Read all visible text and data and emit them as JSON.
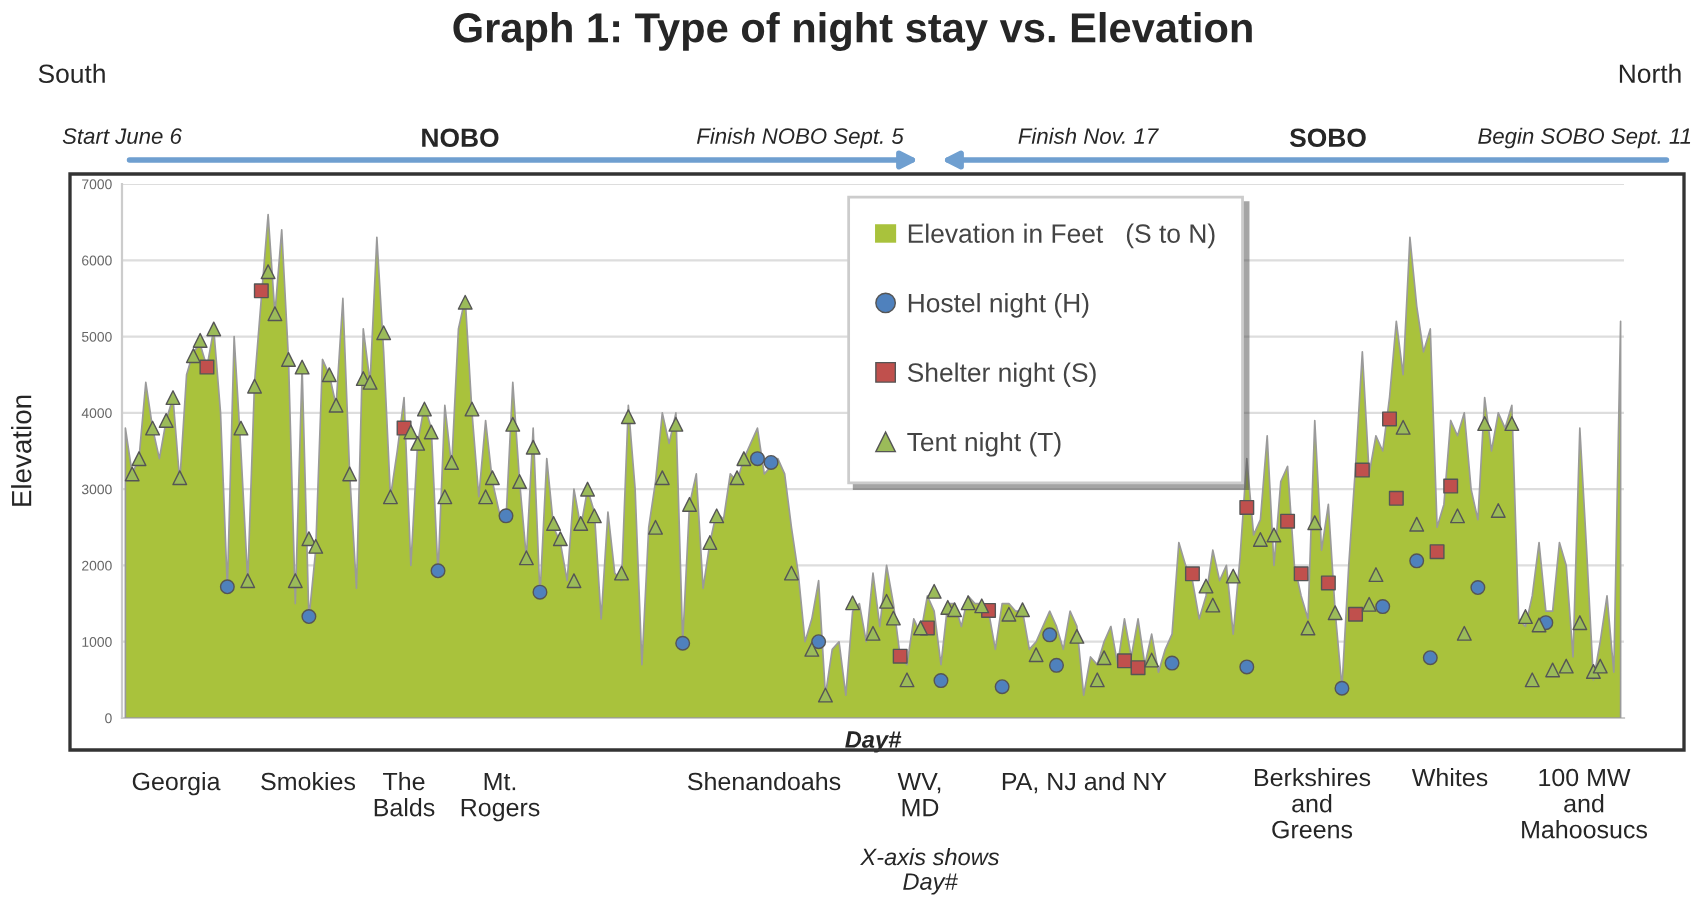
{
  "chart_data": {
    "type": "area",
    "title": "Graph 1: Type of night stay vs. Elevation",
    "xlabel": "Day#",
    "ylabel": "Elevation",
    "ylim": [
      0,
      7000
    ],
    "yticks": [
      0,
      1000,
      2000,
      3000,
      4000,
      5000,
      6000,
      7000
    ],
    "grid": "y",
    "legend": "top",
    "categories": [
      null,
      null,
      null,
      null,
      null,
      null,
      null,
      null,
      null,
      null,
      null,
      null,
      null,
      null,
      null,
      null,
      null,
      null,
      null,
      null,
      null,
      null,
      null,
      null,
      null,
      null,
      null,
      null,
      null,
      null,
      null,
      null,
      null,
      null,
      null,
      null,
      null,
      null,
      null,
      null,
      null,
      null,
      null,
      null,
      null,
      null,
      null,
      null,
      null,
      null,
      null,
      null,
      null,
      null,
      null,
      null,
      null,
      null,
      null,
      null,
      null,
      null,
      null,
      null,
      null,
      null,
      null,
      null,
      null,
      null,
      null,
      null,
      null,
      null,
      null,
      null,
      null,
      null,
      null,
      null,
      null,
      null,
      null,
      null,
      null,
      null,
      null,
      null,
      null,
      null,
      null,
      null,
      null,
      null,
      null,
      null,
      null,
      null,
      null,
      null,
      null,
      null,
      null,
      null,
      null,
      null,
      null,
      null,
      null,
      null,
      null,
      null,
      null,
      null,
      null,
      null,
      null,
      null,
      null,
      null,
      null,
      null,
      null,
      null,
      null,
      null,
      null,
      null,
      null,
      null,
      null,
      null,
      null,
      null,
      null,
      null,
      null,
      null,
      null,
      null,
      null,
      null,
      null,
      null,
      null,
      null,
      null,
      null,
      null,
      null,
      null,
      null,
      null,
      null,
      null,
      null,
      null,
      null,
      null,
      null,
      null,
      null,
      null,
      null,
      null,
      null,
      null,
      null,
      null,
      null,
      null,
      null,
      null,
      null,
      null,
      null,
      null,
      null,
      null,
      null,
      null,
      null,
      null,
      null,
      null,
      null,
      null,
      null,
      null,
      null,
      null,
      null,
      null,
      null,
      null,
      null,
      null,
      null,
      null,
      null,
      null,
      null,
      null,
      null,
      null,
      null,
      null,
      null,
      null,
      null,
      null,
      null,
      null,
      null,
      null,
      null,
      null,
      null,
      null,
      null,
      null
    ],
    "series": [
      {
        "name": "Elevation in Feet   (S to N)",
        "color": "#a9c23c",
        "values": [
          3800,
          3200,
          3400,
          4400,
          3800,
          3400,
          3900,
          4200,
          3100,
          4500,
          4800,
          4900,
          4600,
          5100,
          4000,
          1700,
          5000,
          3500,
          1800,
          4400,
          5500,
          6600,
          5300,
          6400,
          4700,
          1500,
          4600,
          1300,
          2200,
          4700,
          4500,
          4100,
          5500,
          3200,
          1700,
          5100,
          4400,
          6300,
          4800,
          2900,
          3500,
          4200,
          2000,
          3600,
          4100,
          3800,
          1900,
          4100,
          3300,
          5100,
          5500,
          4000,
          2900,
          3900,
          3100,
          2700,
          2600,
          4400,
          3100,
          2100,
          3800,
          1600,
          3400,
          2500,
          2300,
          1800,
          3000,
          2500,
          3000,
          2700,
          1300,
          2700,
          1900,
          1800,
          4100,
          3000,
          700,
          2500,
          3100,
          4000,
          3600,
          4000,
          1000,
          2800,
          3200,
          1700,
          2300,
          2700,
          2600,
          3200,
          3100,
          3400,
          3600,
          3800,
          3200,
          3300,
          3400,
          3200,
          2500,
          1900,
          1000,
          1300,
          1800,
          300,
          900,
          1000,
          300,
          1400,
          1500,
          1000,
          1900,
          1200,
          2000,
          1500,
          800,
          700,
          1300,
          1100,
          1600,
          1400,
          700,
          1500,
          1500,
          1200,
          1600,
          1500,
          1500,
          1400,
          900,
          1500,
          1500,
          1400,
          1400,
          900,
          1000,
          1200,
          1400,
          1200,
          900,
          1400,
          1200,
          300,
          800,
          700,
          1000,
          1200,
          700,
          1300,
          800,
          1300,
          700,
          1100,
          600,
          900,
          1100,
          2300,
          2000,
          1800,
          1300,
          1600,
          2200,
          1800,
          2000,
          1100,
          2100,
          3400,
          2400,
          2600,
          3700,
          2000,
          3100,
          3300,
          2000,
          1600,
          1300,
          3900,
          2200,
          2800,
          1400,
          400,
          2000,
          3300,
          4800,
          3200,
          3700,
          3500,
          4200,
          5200,
          4500,
          6300,
          5400,
          4800,
          5100,
          2500,
          2800,
          3900,
          3700,
          4000,
          3000,
          2600,
          4200,
          3500,
          4000,
          3800,
          4100,
          1300,
          1200,
          1600,
          2300,
          1400,
          1400,
          2300,
          2000,
          800,
          3800,
          2200,
          500,
          1000,
          1600,
          600,
          5200
        ]
      },
      {
        "name": "Hostel night (H)",
        "type": "scatter",
        "marker": "circle",
        "color": "#4f81bd",
        "values": [
          null,
          null,
          null,
          null,
          null,
          null,
          null,
          null,
          null,
          null,
          null,
          null,
          null,
          null,
          null,
          1720,
          null,
          null,
          null,
          null,
          null,
          null,
          null,
          null,
          null,
          null,
          null,
          1330,
          null,
          null,
          null,
          null,
          null,
          null,
          null,
          null,
          null,
          null,
          null,
          null,
          null,
          null,
          null,
          null,
          null,
          null,
          1930,
          null,
          null,
          null,
          null,
          null,
          null,
          null,
          null,
          null,
          2650,
          null,
          null,
          null,
          null,
          1650,
          null,
          null,
          null,
          null,
          null,
          null,
          null,
          null,
          null,
          null,
          null,
          null,
          null,
          null,
          null,
          null,
          null,
          null,
          null,
          null,
          980,
          null,
          null,
          null,
          null,
          null,
          null,
          null,
          null,
          null,
          null,
          3400,
          null,
          3350,
          null,
          null,
          null,
          null,
          null,
          null,
          1000,
          null,
          null,
          null,
          null,
          null,
          null,
          null,
          null,
          null,
          null,
          null,
          null,
          null,
          null,
          null,
          null,
          null,
          490,
          null,
          null,
          null,
          null,
          null,
          null,
          null,
          null,
          410,
          null,
          null,
          null,
          null,
          null,
          null,
          1090,
          690,
          null,
          null,
          null,
          null,
          null,
          null,
          null,
          null,
          null,
          null,
          null,
          null,
          null,
          null,
          null,
          null,
          720,
          null,
          null,
          null,
          null,
          null,
          null,
          null,
          null,
          null,
          null,
          670,
          null,
          null,
          null,
          null,
          null,
          null,
          null,
          null,
          null,
          null,
          null,
          null,
          null,
          390,
          null,
          null,
          null,
          null,
          null,
          1460,
          null,
          null,
          null,
          null,
          2060,
          null,
          790,
          null,
          null,
          null,
          null,
          null,
          null,
          1710,
          null,
          null,
          null,
          null,
          null,
          null,
          null,
          null,
          null,
          1250,
          null,
          null,
          null,
          null,
          null,
          null,
          null,
          null,
          null,
          null,
          null
        ]
      },
      {
        "name": "Shelter night (S)",
        "type": "scatter",
        "marker": "square",
        "color": "#c0504d",
        "values": [
          null,
          null,
          null,
          null,
          null,
          null,
          null,
          null,
          null,
          null,
          null,
          null,
          4600,
          null,
          null,
          null,
          null,
          null,
          null,
          null,
          5600,
          null,
          null,
          null,
          null,
          null,
          null,
          null,
          null,
          null,
          null,
          null,
          null,
          null,
          null,
          null,
          null,
          null,
          null,
          null,
          null,
          3800,
          null,
          null,
          null,
          null,
          null,
          null,
          null,
          null,
          null,
          null,
          null,
          null,
          null,
          null,
          null,
          null,
          null,
          null,
          null,
          null,
          null,
          null,
          null,
          null,
          null,
          null,
          null,
          null,
          null,
          null,
          null,
          null,
          null,
          null,
          null,
          null,
          null,
          null,
          null,
          null,
          null,
          null,
          null,
          null,
          null,
          null,
          null,
          null,
          null,
          null,
          null,
          null,
          null,
          null,
          null,
          null,
          null,
          null,
          null,
          null,
          null,
          null,
          null,
          null,
          null,
          null,
          null,
          null,
          null,
          null,
          null,
          null,
          810,
          null,
          null,
          null,
          1180,
          null,
          null,
          null,
          null,
          null,
          null,
          null,
          null,
          1410,
          null,
          null,
          null,
          null,
          null,
          null,
          null,
          null,
          null,
          null,
          null,
          null,
          null,
          null,
          null,
          null,
          null,
          null,
          null,
          750,
          null,
          660,
          null,
          null,
          null,
          null,
          null,
          null,
          null,
          1890,
          null,
          null,
          null,
          null,
          null,
          null,
          null,
          2760,
          null,
          null,
          null,
          null,
          null,
          2580,
          null,
          1890,
          null,
          null,
          null,
          1770,
          null,
          null,
          null,
          1360,
          3250,
          null,
          null,
          null,
          3920,
          2880,
          null,
          null,
          null,
          null,
          null,
          2180,
          null,
          3040,
          null,
          null,
          null,
          null,
          null,
          null,
          null,
          null,
          null,
          null,
          null,
          null,
          null,
          null,
          null,
          null,
          null,
          null,
          null,
          null,
          null,
          null,
          null,
          null,
          null
        ]
      },
      {
        "name": "Tent night (T)",
        "type": "scatter",
        "marker": "triangle",
        "color": "#9bbb59",
        "values": [
          null,
          3200,
          3400,
          null,
          3800,
          null,
          3900,
          4200,
          3150,
          null,
          4750,
          4950,
          null,
          5100,
          null,
          null,
          null,
          3800,
          1800,
          4350,
          null,
          5850,
          5300,
          null,
          4700,
          1800,
          4600,
          2350,
          2250,
          null,
          4500,
          4100,
          null,
          3200,
          null,
          4450,
          4400,
          null,
          5050,
          2900,
          null,
          null,
          3750,
          3600,
          4050,
          3750,
          null,
          2900,
          3350,
          null,
          5450,
          4050,
          null,
          2900,
          3150,
          null,
          null,
          3850,
          3100,
          2100,
          3550,
          null,
          null,
          2550,
          2350,
          null,
          1800,
          2550,
          3000,
          2650,
          null,
          null,
          null,
          1900,
          3950,
          null,
          null,
          null,
          2500,
          3150,
          null,
          3850,
          null,
          2800,
          null,
          null,
          2300,
          2650,
          null,
          null,
          3150,
          3400,
          null,
          null,
          null,
          null,
          null,
          null,
          1900,
          null,
          null,
          900,
          null,
          300,
          null,
          null,
          null,
          1510,
          null,
          null,
          1110,
          null,
          1530,
          1310,
          null,
          500,
          null,
          1180,
          null,
          1660,
          null,
          1450,
          1420,
          null,
          1510,
          null,
          1470,
          null,
          null,
          null,
          1360,
          null,
          1420,
          null,
          830,
          null,
          null,
          null,
          null,
          null,
          1070,
          null,
          null,
          500,
          790,
          null,
          null,
          null,
          null,
          null,
          null,
          760,
          null,
          null,
          null,
          null,
          null,
          null,
          null,
          1730,
          1480,
          null,
          null,
          1860,
          null,
          null,
          null,
          2340,
          null,
          2400,
          null,
          null,
          null,
          null,
          1180,
          2560,
          null,
          null,
          1380,
          null,
          null,
          null,
          null,
          1490,
          1880,
          null,
          null,
          null,
          3810,
          null,
          2540,
          null,
          null,
          null,
          null,
          null,
          2650,
          1110,
          null,
          null,
          3860,
          null,
          2720,
          null,
          3860,
          null,
          1330,
          500,
          1220,
          null,
          630,
          null,
          680,
          null,
          1250,
          null,
          610,
          680,
          null,
          null,
          null
        ]
      }
    ],
    "annotations": [
      "South",
      "North",
      "Start June 6",
      "NOBO",
      "Finish NOBO Sept. 5",
      "Finish Nov. 17",
      "SOBO",
      "Begin SOBO Sept. 11",
      "Georgia",
      "Smokies",
      "The\nBalds",
      "Mt.\nRogers",
      "Shenandoahs",
      "WV,\nMD",
      "PA, NJ and NY",
      "Berkshires\nand\nGreens",
      "Whites",
      "100 MW\nand\nMahoosucs",
      "X-axis shows\nDay#"
    ]
  }
}
